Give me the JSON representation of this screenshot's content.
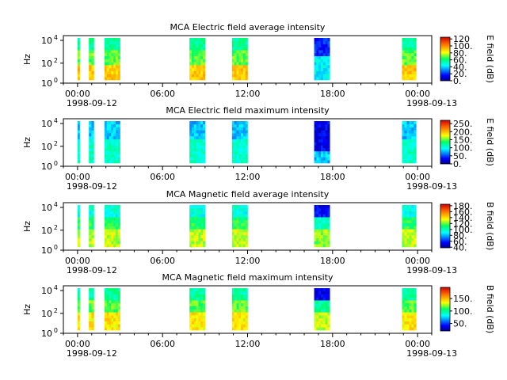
{
  "chart_data": [
    {
      "type": "heatmap",
      "title": "MCA  Electric field average intensity",
      "ylabel": "Hz",
      "y_ticks": [
        "10",
        "10",
        "10"
      ],
      "y_exponents": [
        "0",
        "2",
        "4"
      ],
      "x_ticks": [
        "00:00",
        "06:00",
        "12:00",
        "18:00",
        "00:00"
      ],
      "x_dates": [
        "1998-09-12",
        "1998-09-13"
      ],
      "colorbar_label": "E field (dB)",
      "colorbar_ticks": [
        "0.",
        "20.",
        "40.",
        "60.",
        "80.",
        "100.",
        "120"
      ],
      "colorbar_range": [
        0,
        125
      ],
      "x_range_hours": [
        -1,
        25
      ],
      "segments_hours": [
        [
          0,
          0.15
        ],
        [
          0.8,
          1.15
        ],
        [
          1.9,
          3.0
        ],
        [
          7.9,
          9.0
        ],
        [
          10.9,
          12.0
        ],
        [
          16.7,
          17.8
        ],
        [
          22.9,
          23.9
        ]
      ],
      "style": "avg_e"
    },
    {
      "type": "heatmap",
      "title": "MCA  Electric field maximum intensity",
      "ylabel": "Hz",
      "y_ticks": [
        "10",
        "10",
        "10"
      ],
      "y_exponents": [
        "0",
        "2",
        "4"
      ],
      "x_ticks": [
        "00:00",
        "06:00",
        "12:00",
        "18:00",
        "00:00"
      ],
      "x_dates": [
        "1998-09-12",
        "1998-09-13"
      ],
      "colorbar_label": "E field (dB)",
      "colorbar_ticks": [
        "0.",
        "50.",
        "100.",
        "150.",
        "200.",
        "250."
      ],
      "colorbar_range": [
        0,
        270
      ],
      "x_range_hours": [
        -1,
        25
      ],
      "segments_hours": [
        [
          0,
          0.15
        ],
        [
          0.8,
          1.15
        ],
        [
          1.9,
          3.0
        ],
        [
          7.9,
          9.0
        ],
        [
          10.9,
          12.0
        ],
        [
          16.7,
          17.8
        ],
        [
          22.9,
          23.9
        ]
      ],
      "style": "max_e"
    },
    {
      "type": "heatmap",
      "title": "MCA  Magnetic field average intensity",
      "ylabel": "Hz",
      "y_ticks": [
        "10",
        "10",
        "10"
      ],
      "y_exponents": [
        "0",
        "2",
        "4"
      ],
      "x_ticks": [
        "00:00",
        "06:00",
        "12:00",
        "18:00",
        "00:00"
      ],
      "x_dates": [
        "1998-09-12",
        "1998-09-13"
      ],
      "colorbar_label": "B field (dB)",
      "colorbar_ticks": [
        "40.",
        "60.",
        "80.",
        "100.",
        "120.",
        "140.",
        "160.",
        "180."
      ],
      "colorbar_range": [
        38,
        185
      ],
      "x_range_hours": [
        -1,
        25
      ],
      "segments_hours": [
        [
          0,
          0.15
        ],
        [
          0.8,
          1.15
        ],
        [
          1.9,
          3.0
        ],
        [
          7.9,
          9.0
        ],
        [
          10.9,
          12.0
        ],
        [
          16.7,
          17.8
        ],
        [
          22.9,
          23.9
        ]
      ],
      "style": "avg_b"
    },
    {
      "type": "heatmap",
      "title": "MCA  Magnetic field maximum intensity",
      "ylabel": "Hz",
      "y_ticks": [
        "10",
        "10",
        "10"
      ],
      "y_exponents": [
        "0",
        "2",
        "4"
      ],
      "x_ticks": [
        "00:00",
        "06:00",
        "12:00",
        "18:00",
        "00:00"
      ],
      "x_dates": [
        "1998-09-12",
        "1998-09-13"
      ],
      "colorbar_label": "B field (dB)",
      "colorbar_ticks": [
        "50.",
        "100.",
        "150."
      ],
      "colorbar_range": [
        20,
        195
      ],
      "x_range_hours": [
        -1,
        25
      ],
      "segments_hours": [
        [
          0,
          0.15
        ],
        [
          0.8,
          1.15
        ],
        [
          1.9,
          3.0
        ],
        [
          7.9,
          9.0
        ],
        [
          10.9,
          12.0
        ],
        [
          16.7,
          17.8
        ],
        [
          22.9,
          23.9
        ]
      ],
      "style": "max_b"
    }
  ]
}
